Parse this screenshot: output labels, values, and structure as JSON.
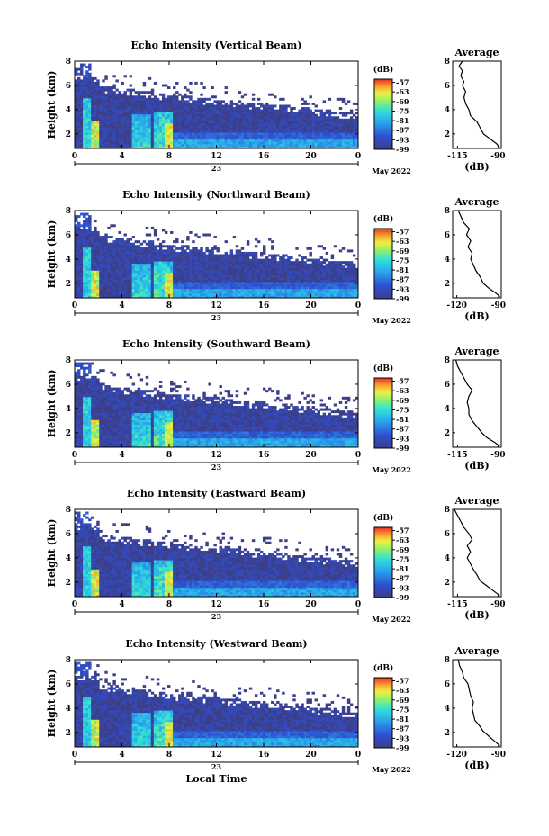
{
  "chart_data": [
    {
      "type": "heatmap",
      "title": "Echo Intensity (Vertical Beam)",
      "ylabel": "Height (km)",
      "x_ticks": [
        "0",
        "4",
        "8",
        "12",
        "16",
        "20",
        "0"
      ],
      "x_range_hours": [
        0,
        24
      ],
      "y_ticks": [
        "2",
        "4",
        "6",
        "8"
      ],
      "y_range_km": [
        0.8,
        8
      ],
      "day_label": "23",
      "month_label": "May 2022",
      "colorbar": {
        "unit": "(dB)",
        "ticks": [
          "-57",
          "-63",
          "-69",
          "-75",
          "-81",
          "-87",
          "-93",
          "-99"
        ],
        "range": [
          -99,
          -55
        ]
      },
      "average": {
        "title": "Average",
        "xlabel": "(dB)",
        "x_ticks": [
          "-115",
          "-90"
        ],
        "xlim": [
          -118,
          -88
        ],
        "y_ticks": [
          "2",
          "4",
          "6",
          "8"
        ],
        "ylim": [
          0.8,
          8
        ],
        "profile": [
          [
            -89,
            0.9
          ],
          [
            -91,
            1.2
          ],
          [
            -95,
            1.6
          ],
          [
            -99,
            2.0
          ],
          [
            -101,
            2.5
          ],
          [
            -103,
            3.0
          ],
          [
            -107,
            3.5
          ],
          [
            -108,
            4.0
          ],
          [
            -110,
            4.5
          ],
          [
            -111,
            5.0
          ],
          [
            -110,
            5.5
          ],
          [
            -112,
            6.0
          ],
          [
            -111,
            6.3
          ],
          [
            -113,
            6.8
          ],
          [
            -112,
            7.2
          ],
          [
            -114,
            7.6
          ],
          [
            -112,
            8.0
          ]
        ]
      }
    },
    {
      "type": "heatmap",
      "title": "Echo Intensity (Northward Beam)",
      "ylabel": "Height (km)",
      "x_ticks": [
        "0",
        "4",
        "8",
        "12",
        "16",
        "20",
        "0"
      ],
      "x_range_hours": [
        0,
        24
      ],
      "y_ticks": [
        "2",
        "4",
        "6",
        "8"
      ],
      "y_range_km": [
        0.8,
        8
      ],
      "day_label": "23",
      "month_label": "May 2022",
      "colorbar": {
        "unit": "(dB)",
        "ticks": [
          "-57",
          "-63",
          "-69",
          "-75",
          "-81",
          "-87",
          "-93",
          "-99"
        ],
        "range": [
          -99,
          -55
        ]
      },
      "average": {
        "title": "Average",
        "xlabel": "(dB)",
        "x_ticks": [
          "-120",
          "-90"
        ],
        "xlim": [
          -123,
          -88
        ],
        "y_ticks": [
          "2",
          "4",
          "6",
          "8"
        ],
        "ylim": [
          0.8,
          8
        ],
        "profile": [
          [
            -89,
            0.9
          ],
          [
            -92,
            1.2
          ],
          [
            -97,
            1.6
          ],
          [
            -101,
            2.0
          ],
          [
            -103,
            2.5
          ],
          [
            -106,
            3.0
          ],
          [
            -108,
            3.5
          ],
          [
            -110,
            4.0
          ],
          [
            -109,
            4.5
          ],
          [
            -112,
            5.0
          ],
          [
            -110,
            5.5
          ],
          [
            -113,
            6.0
          ],
          [
            -111,
            6.5
          ],
          [
            -115,
            7.0
          ],
          [
            -117,
            7.5
          ],
          [
            -119,
            8.0
          ]
        ]
      }
    },
    {
      "type": "heatmap",
      "title": "Echo Intensity (Southward Beam)",
      "ylabel": "Height (km)",
      "x_ticks": [
        "0",
        "4",
        "8",
        "12",
        "16",
        "20",
        "0"
      ],
      "x_range_hours": [
        0,
        24
      ],
      "y_ticks": [
        "2",
        "4",
        "6",
        "8"
      ],
      "y_range_km": [
        0.8,
        8
      ],
      "day_label": "23",
      "month_label": "May 2022",
      "colorbar": {
        "unit": "(dB)",
        "ticks": [
          "-57",
          "-63",
          "-69",
          "-75",
          "-81",
          "-87",
          "-93",
          "-99"
        ],
        "range": [
          -99,
          -55
        ]
      },
      "average": {
        "title": "Average",
        "xlabel": "(dB)",
        "x_ticks": [
          "-115",
          "-90"
        ],
        "xlim": [
          -118,
          -88
        ],
        "y_ticks": [
          "2",
          "4",
          "6",
          "8"
        ],
        "ylim": [
          0.8,
          8
        ],
        "profile": [
          [
            -89,
            0.9
          ],
          [
            -92,
            1.2
          ],
          [
            -97,
            1.6
          ],
          [
            -100,
            2.0
          ],
          [
            -103,
            2.5
          ],
          [
            -106,
            3.0
          ],
          [
            -108,
            3.5
          ],
          [
            -108,
            4.0
          ],
          [
            -109,
            4.5
          ],
          [
            -108,
            5.0
          ],
          [
            -106,
            5.5
          ],
          [
            -109,
            6.0
          ],
          [
            -111,
            6.5
          ],
          [
            -113,
            7.0
          ],
          [
            -115,
            7.5
          ],
          [
            -116,
            8.0
          ]
        ]
      }
    },
    {
      "type": "heatmap",
      "title": "Echo Intensity (Eastward Beam)",
      "ylabel": "Height (km)",
      "x_ticks": [
        "0",
        "4",
        "8",
        "12",
        "16",
        "20",
        "0"
      ],
      "x_range_hours": [
        0,
        24
      ],
      "y_ticks": [
        "2",
        "4",
        "6",
        "8"
      ],
      "y_range_km": [
        0.8,
        8
      ],
      "day_label": "23",
      "month_label": "May 2022",
      "colorbar": {
        "unit": "(dB)",
        "ticks": [
          "-57",
          "-63",
          "-69",
          "-75",
          "-81",
          "-87",
          "-93",
          "-99"
        ],
        "range": [
          -99,
          -55
        ]
      },
      "average": {
        "title": "Average",
        "xlabel": "(dB)",
        "x_ticks": [
          "-115",
          "-90"
        ],
        "xlim": [
          -118,
          -88
        ],
        "y_ticks": [
          "2",
          "4",
          "6",
          "8"
        ],
        "ylim": [
          0.8,
          8
        ],
        "profile": [
          [
            -89,
            0.9
          ],
          [
            -93,
            1.3
          ],
          [
            -97,
            1.7
          ],
          [
            -101,
            2.1
          ],
          [
            -103,
            2.6
          ],
          [
            -105,
            3.0
          ],
          [
            -107,
            3.5
          ],
          [
            -109,
            4.0
          ],
          [
            -107,
            4.5
          ],
          [
            -109,
            5.0
          ],
          [
            -106,
            5.5
          ],
          [
            -108,
            6.0
          ],
          [
            -111,
            6.5
          ],
          [
            -113,
            7.0
          ],
          [
            -115,
            7.5
          ],
          [
            -117,
            8.0
          ]
        ]
      }
    },
    {
      "type": "heatmap",
      "title": "Echo Intensity (Westward Beam)",
      "ylabel": "Height (km)",
      "x_ticks": [
        "0",
        "4",
        "8",
        "12",
        "16",
        "20",
        "0"
      ],
      "x_range_hours": [
        0,
        24
      ],
      "y_ticks": [
        "2",
        "4",
        "6",
        "8"
      ],
      "y_range_km": [
        0.8,
        8
      ],
      "day_label": "23",
      "month_label": "May 2022",
      "xlabel": "Local Time",
      "colorbar": {
        "unit": "(dB)",
        "ticks": [
          "-57",
          "-63",
          "-69",
          "-75",
          "-81",
          "-87",
          "-93",
          "-99"
        ],
        "range": [
          -99,
          -55
        ]
      },
      "average": {
        "title": "Average",
        "xlabel": "(dB)",
        "x_ticks": [
          "-120",
          "-90"
        ],
        "xlim": [
          -123,
          -88
        ],
        "y_ticks": [
          "2",
          "4",
          "6",
          "8"
        ],
        "ylim": [
          0.8,
          8
        ],
        "profile": [
          [
            -89,
            0.9
          ],
          [
            -93,
            1.3
          ],
          [
            -97,
            1.7
          ],
          [
            -101,
            2.1
          ],
          [
            -104,
            2.6
          ],
          [
            -107,
            3.0
          ],
          [
            -108,
            3.5
          ],
          [
            -109,
            4.0
          ],
          [
            -108,
            4.5
          ],
          [
            -110,
            5.0
          ],
          [
            -111,
            5.5
          ],
          [
            -112,
            6.0
          ],
          [
            -115,
            6.5
          ],
          [
            -116,
            7.0
          ],
          [
            -118,
            7.5
          ],
          [
            -119,
            8.0
          ]
        ]
      }
    }
  ]
}
